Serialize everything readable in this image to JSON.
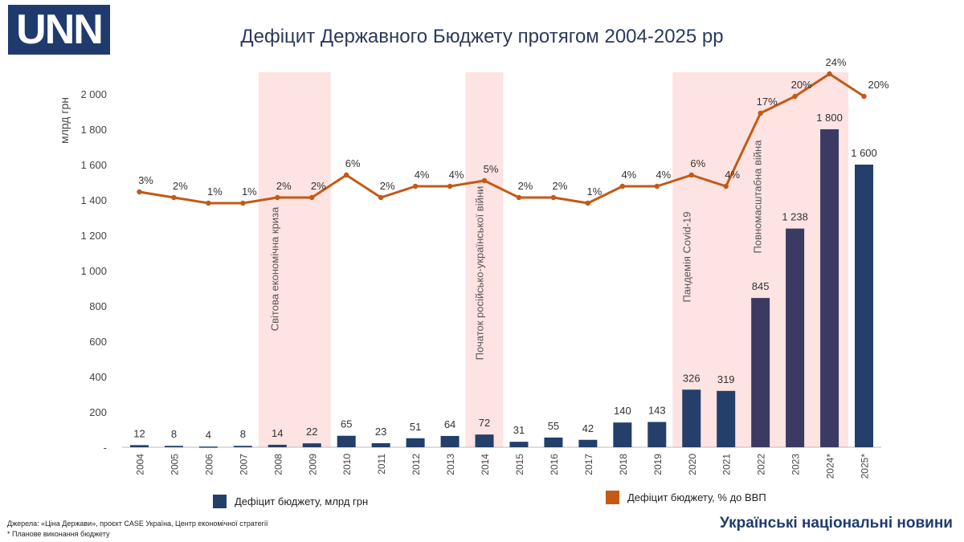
{
  "logo": {
    "text": "UNN"
  },
  "colors": {
    "bar": "#233f6a",
    "bar_dark": "#3b3a63",
    "line": "#c25a16",
    "band": "#fde3e1",
    "axis": "#bbbbbb",
    "brand": "#1f3b6e"
  },
  "legend": {
    "bars_label": "Дефіцит бюджету, млрд грн",
    "line_label": "Дефіцит бюджету, % до ВВП"
  },
  "sources": {
    "line1": "Джерела: «Ціна Держави», проєкт CASE Україна, Центр економічної стратегії",
    "line2": "* Планове виконання бюджету"
  },
  "brand": "Українські національні новини",
  "chart_data": {
    "type": "bar",
    "title": "Дефіцит Державного Бюджету протягом 2004-2025 рр",
    "ylabel": "млрд грн",
    "ylim": [
      0,
      2000
    ],
    "yticks": [
      "-",
      "200",
      "400",
      "600",
      "800",
      "1 000",
      "1 200",
      "1 400",
      "1 600",
      "1 800",
      "2 000"
    ],
    "categories": [
      "2004",
      "2005",
      "2006",
      "2007",
      "2008",
      "2009",
      "2010",
      "2011",
      "2012",
      "2013",
      "2014",
      "2015",
      "2016",
      "2017",
      "2018",
      "2019",
      "2020",
      "2021",
      "2022",
      "2023",
      "2024*",
      "2025*"
    ],
    "series": [
      {
        "name": "Дефіцит бюджету, млрд грн",
        "type": "bar",
        "values": [
          12,
          8,
          4,
          8,
          14,
          22,
          65,
          23,
          51,
          64,
          72,
          31,
          55,
          42,
          140,
          143,
          326,
          319,
          845,
          1238,
          1800,
          1600
        ],
        "labels": [
          "12",
          "8",
          "4",
          "8",
          "14",
          "22",
          "65",
          "23",
          "51",
          "64",
          "72",
          "31",
          "55",
          "42",
          "140",
          "143",
          "326",
          "319",
          "845",
          "1 238",
          "1 800",
          "1 600"
        ]
      },
      {
        "name": "Дефіцит бюджету, % до ВВП",
        "type": "line",
        "values": [
          3,
          2,
          1,
          1,
          2,
          2,
          6,
          2,
          4,
          4,
          5,
          2,
          2,
          1,
          4,
          4,
          6,
          4,
          17,
          20,
          24,
          20
        ],
        "labels": [
          "3%",
          "2%",
          "1%",
          "1%",
          "2%",
          "2%",
          "6%",
          "2%",
          "4%",
          "4%",
          "5%",
          "2%",
          "2%",
          "1%",
          "4%",
          "4%",
          "6%",
          "4%",
          "17%",
          "20%",
          "24%",
          "20%"
        ]
      }
    ],
    "annotations": [
      {
        "label": "Світова економічна криза",
        "from": "2008",
        "to": "2009"
      },
      {
        "label": "Початок російсько-української війни",
        "from": "2014",
        "to": "2014"
      },
      {
        "label": "Пандемія Covid-19",
        "from": "2020",
        "to": "2021"
      },
      {
        "label": "Повномасштабна війна",
        "from": "2022",
        "to": "2024*"
      }
    ]
  }
}
